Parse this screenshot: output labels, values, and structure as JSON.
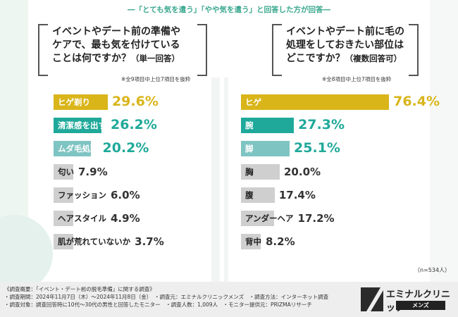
{
  "header_note": "―「とても気を遣う」「やや気を遣う」と回答した方が回答―",
  "left": {
    "question_lines": [
      "イベントやデート前の準備や",
      "ケアで、最も気を付けている",
      "ことは何ですか？"
    ],
    "question_suffix": "（単一回答）",
    "note": "※全9項目中上位7項目を抜粋"
  },
  "right": {
    "question_lines": [
      "イベントやデート前に毛の",
      "処理をしておきたい部位は",
      "どこですか？"
    ],
    "question_suffix": "（複数回答可）",
    "note": "※全8項目中上位7項目を抜粋"
  },
  "sample_size": "（n=534人）",
  "survey": {
    "line1": "《調査概要：「イベント・デート前の脱毛準備」に関する調査》",
    "line2": "・調査期間：2024年11月7日（木）～2024年11月8日（金）　・調査元：エミナルクリニックメンズ　・調査方法：インターネット調査",
    "line3": "・調査対象：調査回答時に10代～30代の男性と回答したモニター　・調査人数：1,009人　・モニター提供元：PRIZMAリサーチ"
  },
  "logo": {
    "name": "エミナルクリニック",
    "sub": "メンズ"
  },
  "colors": {
    "gold": "#d9b51a",
    "teal": "#1fa99a",
    "lightTeal": "#7ec4c2",
    "gray": "#cfcfcf",
    "text": "#222222"
  },
  "chart_data": [
    {
      "type": "bar",
      "orientation": "horizontal",
      "title": "イベントやデート前の準備やケアで、最も気を付けていることは何ですか？（単一回答）",
      "unit": "%",
      "categories": [
        "ヒゲ剃り",
        "清潔感を出す",
        "ムダ毛処理",
        "匂い",
        "ファッション",
        "ヘアスタイル",
        "肌が荒れていないか"
      ],
      "values": [
        29.6,
        26.2,
        20.2,
        7.9,
        6.0,
        4.9,
        3.7
      ],
      "value_labels": [
        "29.6%",
        "26.2%",
        "20.2%",
        "7.9%",
        "6.0%",
        "4.9%",
        "3.7%"
      ]
    },
    {
      "type": "bar",
      "orientation": "horizontal",
      "title": "イベントやデート前に毛の処理をしておきたい部位はどこですか？（複数回答可）",
      "unit": "%",
      "categories": [
        "ヒゲ",
        "腕",
        "脚",
        "胸",
        "腹",
        "アンダーヘア",
        "背中"
      ],
      "values": [
        76.4,
        27.3,
        25.1,
        20.0,
        17.4,
        17.2,
        8.2
      ],
      "value_labels": [
        "76.4%",
        "27.3%",
        "25.1%",
        "20.0%",
        "17.4%",
        "17.2%",
        "8.2%"
      ]
    }
  ]
}
